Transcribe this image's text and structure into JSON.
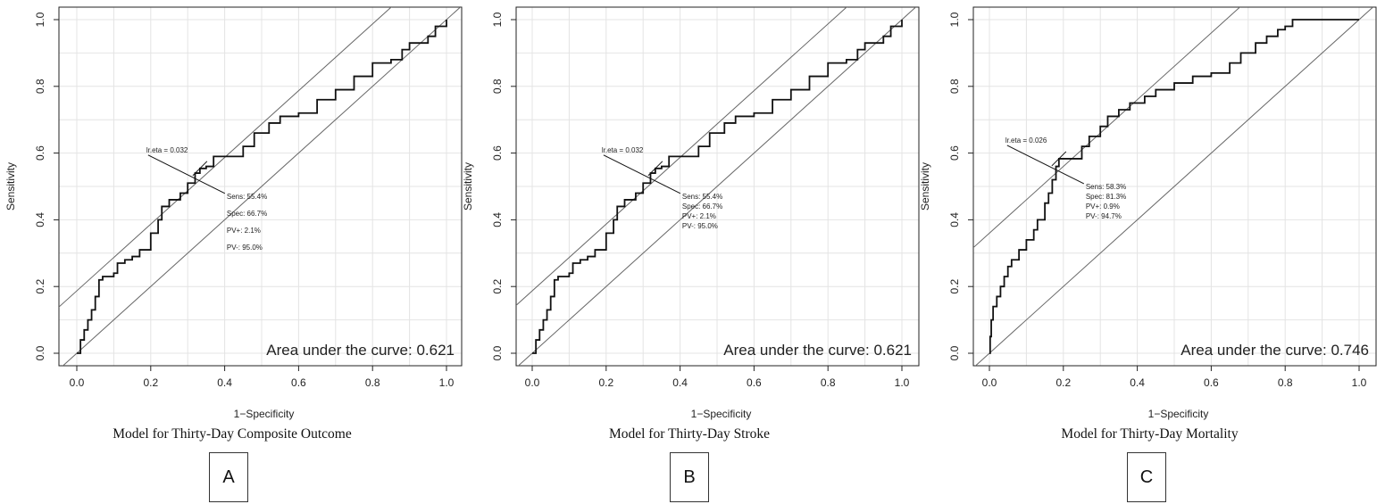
{
  "chart_data": [
    {
      "type": "line",
      "panel_label": "A",
      "caption": "Model for Thirty-Day Composite Outcome",
      "xlabel": "1−Specificity",
      "ylabel": "Sensitivity",
      "xlim": [
        0,
        1
      ],
      "ylim": [
        0,
        1
      ],
      "xticks": [
        "0.0",
        "0.2",
        "0.4",
        "0.6",
        "0.8",
        "1.0"
      ],
      "yticks": [
        "0.0",
        "0.2",
        "0.4",
        "0.6",
        "0.8",
        "1.0"
      ],
      "grid": true,
      "auc_text": "Area under the curve: 0.621",
      "threshold_label": "lr.eta = 0.032",
      "threshold_point": [
        0.333,
        0.554
      ],
      "stats": [
        "Sens: 55.4%",
        "Spec: 66.7%",
        "PV+: 2.1%",
        "PV-: 95.0%"
      ],
      "reference_lines": [
        {
          "slope": 1,
          "intercept": 0
        },
        {
          "slope": 1,
          "intercept": 0.187
        }
      ],
      "x": [
        0.0,
        0.01,
        0.02,
        0.03,
        0.04,
        0.05,
        0.06,
        0.07,
        0.08,
        0.1,
        0.11,
        0.13,
        0.15,
        0.17,
        0.2,
        0.22,
        0.23,
        0.25,
        0.28,
        0.3,
        0.32,
        0.333,
        0.35,
        0.37,
        0.4,
        0.45,
        0.48,
        0.52,
        0.55,
        0.6,
        0.65,
        0.7,
        0.75,
        0.8,
        0.85,
        0.88,
        0.9,
        0.95,
        0.97,
        1.0
      ],
      "y": [
        0.0,
        0.04,
        0.07,
        0.1,
        0.13,
        0.17,
        0.22,
        0.23,
        0.23,
        0.24,
        0.27,
        0.28,
        0.29,
        0.31,
        0.36,
        0.4,
        0.44,
        0.46,
        0.48,
        0.51,
        0.54,
        0.554,
        0.56,
        0.59,
        0.59,
        0.62,
        0.66,
        0.69,
        0.71,
        0.72,
        0.76,
        0.79,
        0.83,
        0.87,
        0.88,
        0.91,
        0.93,
        0.95,
        0.98,
        1.0
      ]
    },
    {
      "type": "line",
      "panel_label": "B",
      "caption": "Model for Thirty-Day Stroke",
      "xlabel": "1−Specificity",
      "ylabel": "Sensitivity",
      "xlim": [
        0,
        1
      ],
      "ylim": [
        0,
        1
      ],
      "xticks": [
        "0.0",
        "0.2",
        "0.4",
        "0.6",
        "0.8",
        "1.0"
      ],
      "yticks": [
        "0.0",
        "0.2",
        "0.4",
        "0.6",
        "0.8",
        "1.0"
      ],
      "grid": true,
      "auc_text": "Area under the curve: 0.621",
      "threshold_label": "lr.eta = 0.032",
      "threshold_point": [
        0.333,
        0.554
      ],
      "stats": [
        "Sens: 55.4%",
        "Spec: 66.7%",
        "PV+: 2.1%",
        "PV-: 95.0%"
      ],
      "reference_lines": [
        {
          "slope": 1,
          "intercept": 0
        },
        {
          "slope": 1,
          "intercept": 0.187
        }
      ],
      "x": [
        0.0,
        0.01,
        0.02,
        0.03,
        0.04,
        0.05,
        0.06,
        0.07,
        0.08,
        0.1,
        0.11,
        0.13,
        0.15,
        0.17,
        0.2,
        0.22,
        0.23,
        0.25,
        0.28,
        0.3,
        0.32,
        0.333,
        0.35,
        0.37,
        0.4,
        0.45,
        0.48,
        0.52,
        0.55,
        0.6,
        0.65,
        0.7,
        0.75,
        0.8,
        0.85,
        0.88,
        0.9,
        0.95,
        0.97,
        1.0
      ],
      "y": [
        0.0,
        0.04,
        0.07,
        0.1,
        0.13,
        0.17,
        0.22,
        0.23,
        0.23,
        0.24,
        0.27,
        0.28,
        0.29,
        0.31,
        0.36,
        0.4,
        0.44,
        0.46,
        0.48,
        0.51,
        0.54,
        0.554,
        0.56,
        0.59,
        0.59,
        0.62,
        0.66,
        0.69,
        0.71,
        0.72,
        0.76,
        0.79,
        0.83,
        0.87,
        0.88,
        0.91,
        0.93,
        0.95,
        0.98,
        1.0
      ]
    },
    {
      "type": "line",
      "panel_label": "C",
      "caption": "Model for Thirty-Day Mortality",
      "xlabel": "1−Specificity",
      "ylabel": "Sensitivity",
      "xlim": [
        0,
        1
      ],
      "ylim": [
        0,
        1
      ],
      "xticks": [
        "0.0",
        "0.2",
        "0.4",
        "0.6",
        "0.8",
        "1.0"
      ],
      "yticks": [
        "0.0",
        "0.2",
        "0.4",
        "0.6",
        "0.8",
        "1.0"
      ],
      "grid": true,
      "auc_text": "Area under the curve: 0.746",
      "threshold_label": "lr.eta = 0.026",
      "threshold_point": [
        0.188,
        0.583
      ],
      "stats": [
        "Sens: 58.3%",
        "Spec: 81.3%",
        "PV+: 0.9%",
        "PV-: 94.7%"
      ],
      "reference_lines": [
        {
          "slope": 1,
          "intercept": 0
        },
        {
          "slope": 1,
          "intercept": 0.36
        }
      ],
      "x": [
        0.0,
        0.002,
        0.005,
        0.01,
        0.02,
        0.03,
        0.04,
        0.05,
        0.06,
        0.08,
        0.1,
        0.12,
        0.13,
        0.15,
        0.16,
        0.17,
        0.18,
        0.188,
        0.2,
        0.22,
        0.25,
        0.27,
        0.3,
        0.32,
        0.35,
        0.38,
        0.42,
        0.45,
        0.5,
        0.55,
        0.6,
        0.65,
        0.68,
        0.72,
        0.75,
        0.78,
        0.8,
        0.82,
        1.0
      ],
      "y": [
        0.0,
        0.05,
        0.1,
        0.14,
        0.17,
        0.2,
        0.23,
        0.26,
        0.28,
        0.31,
        0.34,
        0.37,
        0.4,
        0.45,
        0.48,
        0.52,
        0.56,
        0.583,
        0.583,
        0.583,
        0.62,
        0.65,
        0.68,
        0.71,
        0.73,
        0.75,
        0.77,
        0.79,
        0.81,
        0.83,
        0.84,
        0.87,
        0.9,
        0.93,
        0.95,
        0.97,
        0.98,
        1.0,
        1.0
      ]
    }
  ]
}
